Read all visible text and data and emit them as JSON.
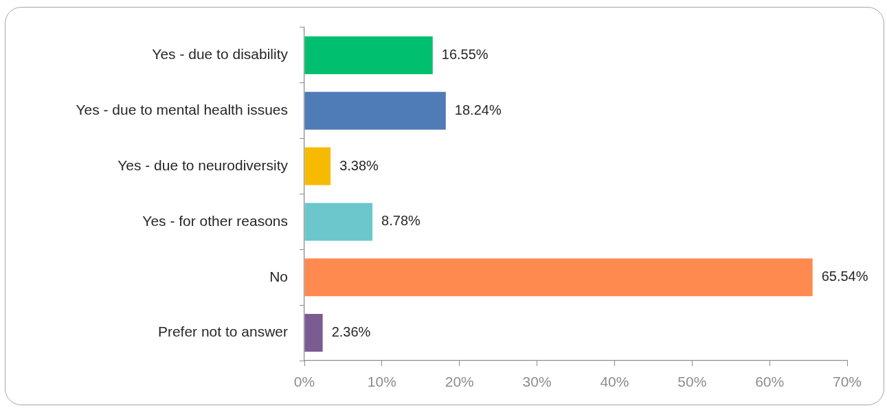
{
  "chart_data": {
    "type": "bar",
    "orientation": "horizontal",
    "categories": [
      "Yes - due to disability",
      "Yes - due to mental health issues",
      "Yes - due to neurodiversity",
      "Yes - for other reasons",
      "No",
      "Prefer not to answer"
    ],
    "values": [
      16.55,
      18.24,
      3.38,
      8.78,
      65.54,
      2.36
    ],
    "colors": [
      "#00bf6f",
      "#4f7bb6",
      "#f6bb00",
      "#6bc7cb",
      "#ff8a50",
      "#7a5b92"
    ],
    "value_labels": [
      "16.55%",
      "18.24%",
      "3.38%",
      "8.78%",
      "65.54%",
      "2.36%"
    ],
    "xlim": [
      0,
      70
    ],
    "xticks": [
      {
        "value": 0,
        "label": "0%"
      },
      {
        "value": 10,
        "label": "10%"
      },
      {
        "value": 20,
        "label": "20%"
      },
      {
        "value": 30,
        "label": "30%"
      },
      {
        "value": 40,
        "label": "40%"
      },
      {
        "value": 50,
        "label": "50%"
      },
      {
        "value": 60,
        "label": "60%"
      },
      {
        "value": 70,
        "label": "70%"
      }
    ]
  }
}
